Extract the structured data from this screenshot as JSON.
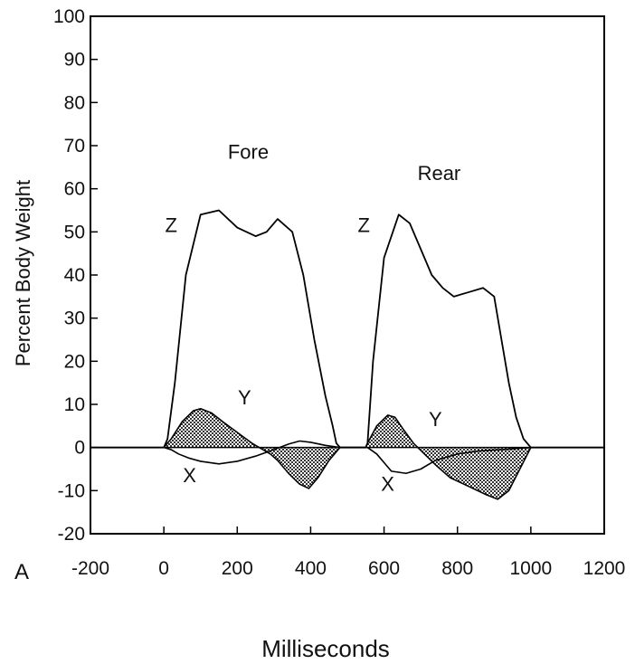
{
  "chart_data": {
    "type": "line",
    "panel_label": "A",
    "xlabel": "Milliseconds",
    "ylabel": "Percent Body Weight",
    "xlim": [
      -200,
      1200
    ],
    "ylim": [
      -20,
      100
    ],
    "x_ticks": [
      -200,
      0,
      200,
      400,
      600,
      800,
      1000,
      1200
    ],
    "y_ticks": [
      -20,
      -10,
      0,
      10,
      20,
      30,
      40,
      50,
      60,
      70,
      80,
      90,
      100
    ],
    "annotations": [
      {
        "text": "Fore",
        "x": 230,
        "y": 67
      },
      {
        "text": "Rear",
        "x": 750,
        "y": 62
      },
      {
        "text": "Z",
        "x": 20,
        "y": 50
      },
      {
        "text": "Z",
        "x": 545,
        "y": 50
      },
      {
        "text": "Y",
        "x": 220,
        "y": 10
      },
      {
        "text": "Y",
        "x": 740,
        "y": 5
      },
      {
        "text": "X",
        "x": 70,
        "y": -8
      },
      {
        "text": "X",
        "x": 610,
        "y": -10
      }
    ],
    "series": [
      {
        "name": "Z",
        "x": [
          -200,
          0,
          10,
          30,
          60,
          100,
          150,
          200,
          250,
          280,
          310,
          350,
          380,
          410,
          440,
          460,
          470,
          480,
          500,
          520,
          540,
          550,
          555,
          570,
          600,
          640,
          670,
          700,
          730,
          760,
          790,
          830,
          870,
          900,
          920,
          940,
          960,
          980,
          1000,
          1200
        ],
        "y": [
          0,
          0,
          2,
          15,
          40,
          54,
          55,
          51,
          49,
          50,
          53,
          50,
          40,
          25,
          12,
          5,
          1,
          0,
          0,
          0,
          0,
          0,
          1,
          20,
          44,
          54,
          52,
          46,
          40,
          37,
          35,
          36,
          37,
          35,
          25,
          15,
          7,
          2,
          0,
          0
        ]
      },
      {
        "name": "Y",
        "x": [
          0,
          20,
          50,
          80,
          100,
          130,
          160,
          200,
          240,
          270,
          290,
          310,
          340,
          370,
          395,
          420,
          450,
          480,
          520,
          550,
          555,
          580,
          610,
          630,
          650,
          680,
          710,
          740,
          780,
          830,
          880,
          910,
          940,
          970,
          1000
        ],
        "y": [
          0,
          2,
          6,
          8.5,
          9,
          8,
          6,
          3.5,
          1,
          -0.5,
          -1.5,
          -3,
          -6,
          -8.5,
          -9.5,
          -7,
          -3,
          0,
          0,
          0,
          1,
          5,
          7.5,
          7,
          4.5,
          1,
          -1.5,
          -4,
          -7,
          -9,
          -11,
          -12,
          -10,
          -5,
          0
        ]
      },
      {
        "name": "X",
        "x": [
          0,
          20,
          40,
          70,
          100,
          150,
          200,
          250,
          300,
          340,
          370,
          400,
          440,
          480,
          520,
          555,
          580,
          620,
          660,
          700,
          740,
          800,
          860,
          920,
          970,
          1000
        ],
        "y": [
          0,
          -0.5,
          -1.5,
          -2.5,
          -3.2,
          -3.8,
          -3.2,
          -2,
          -0.5,
          0.8,
          1.5,
          1.2,
          0.5,
          0,
          0,
          0,
          -1.5,
          -5.5,
          -6,
          -5,
          -3,
          -1.5,
          -0.8,
          -0.5,
          -0.2,
          0
        ]
      }
    ]
  }
}
